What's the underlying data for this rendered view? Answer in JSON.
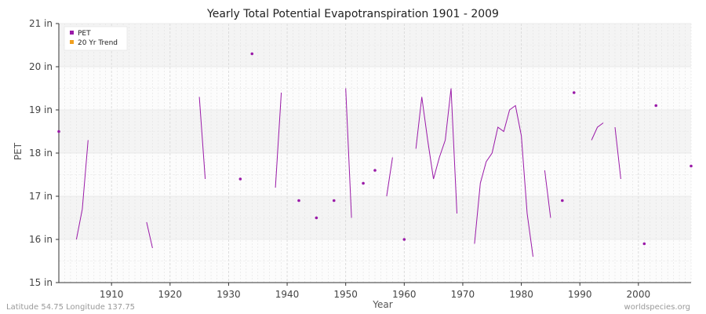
{
  "chart_data": {
    "type": "line",
    "title": "Yearly Total Potential Evapotranspiration 1901 - 2009",
    "xlabel": "Year",
    "ylabel": "PET",
    "xlim": [
      1901,
      2009
    ],
    "ylim": [
      15,
      21
    ],
    "y_unit": "in",
    "x_ticks": [
      1910,
      1920,
      1930,
      1940,
      1950,
      1960,
      1970,
      1980,
      1990,
      2000
    ],
    "y_ticks": [
      15,
      16,
      17,
      18,
      19,
      20,
      21
    ],
    "y_tick_labels": [
      "15 in",
      "16 in",
      "17 in",
      "18 in",
      "19 in",
      "20 in",
      "21 in"
    ],
    "grid": true,
    "legend_position": "top-left",
    "series": [
      {
        "name": "PET",
        "color": "#9a1aa8",
        "points": [
          [
            1901,
            18.5
          ],
          [
            1904,
            16.0
          ],
          [
            1905,
            16.7
          ],
          [
            1906,
            18.3
          ],
          [
            1916,
            16.4
          ],
          [
            1917,
            15.8
          ],
          [
            1925,
            19.3
          ],
          [
            1926,
            17.4
          ],
          [
            1932,
            17.4
          ],
          [
            1934,
            20.3
          ],
          [
            1938,
            17.2
          ],
          [
            1939,
            19.4
          ],
          [
            1942,
            16.9
          ],
          [
            1945,
            16.5
          ],
          [
            1948,
            16.9
          ],
          [
            1950,
            19.5
          ],
          [
            1951,
            16.5
          ],
          [
            1953,
            17.3
          ],
          [
            1955,
            17.6
          ],
          [
            1957,
            17.0
          ],
          [
            1958,
            17.9
          ],
          [
            1960,
            16.0
          ],
          [
            1962,
            18.1
          ],
          [
            1963,
            19.3
          ],
          [
            1964,
            18.3
          ],
          [
            1965,
            17.4
          ],
          [
            1966,
            17.9
          ],
          [
            1967,
            18.3
          ],
          [
            1968,
            19.5
          ],
          [
            1969,
            16.6
          ],
          [
            1972,
            15.9
          ],
          [
            1973,
            17.3
          ],
          [
            1974,
            17.8
          ],
          [
            1975,
            18.0
          ],
          [
            1976,
            18.6
          ],
          [
            1977,
            18.5
          ],
          [
            1978,
            19.0
          ],
          [
            1979,
            19.1
          ],
          [
            1980,
            18.4
          ],
          [
            1981,
            16.6
          ],
          [
            1982,
            15.6
          ],
          [
            1984,
            17.6
          ],
          [
            1985,
            16.5
          ],
          [
            1987,
            16.9
          ],
          [
            1989,
            19.4
          ],
          [
            1992,
            18.3
          ],
          [
            1993,
            18.6
          ],
          [
            1994,
            18.7
          ],
          [
            1996,
            18.6
          ],
          [
            1997,
            17.4
          ],
          [
            2001,
            15.9
          ],
          [
            2003,
            19.1
          ],
          [
            2009,
            17.7
          ]
        ]
      },
      {
        "name": "20 Yr Trend",
        "color": "#f0a020",
        "points": []
      }
    ],
    "footer_left": "Latitude 54.75 Longitude 137.75",
    "footer_right": "worldspecies.org"
  }
}
